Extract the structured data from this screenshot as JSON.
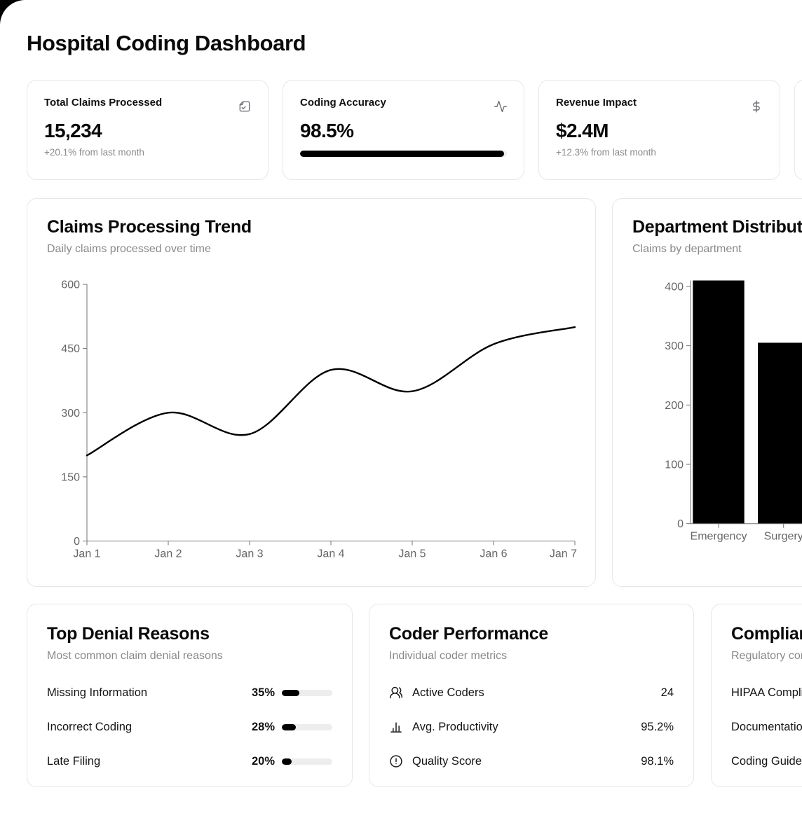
{
  "page": {
    "title": "Hospital Coding Dashboard"
  },
  "stat_cards": [
    {
      "icon": "file-check-icon",
      "label": "Total Claims Processed",
      "value": "15,234",
      "delta": "+20.1% from last month"
    },
    {
      "icon": "activity-icon",
      "label": "Coding Accuracy",
      "value": "98.5%",
      "progress_pct": 98.5
    },
    {
      "icon": "dollar-sign-icon",
      "label": "Revenue Impact",
      "value": "$2.4M",
      "delta": "+12.3% from last month"
    }
  ],
  "chart_data": [
    {
      "type": "line",
      "title": "Claims Processing Trend",
      "subtitle": "Daily claims processed over time",
      "x": [
        "Jan 1",
        "Jan 2",
        "Jan 3",
        "Jan 4",
        "Jan 5",
        "Jan 6",
        "Jan 7"
      ],
      "values": [
        200,
        300,
        250,
        400,
        350,
        460,
        500
      ],
      "ylim": [
        0,
        600
      ],
      "yticks": [
        0,
        150,
        300,
        450,
        600
      ],
      "grid": false,
      "legend": false,
      "line_color": "#000000",
      "axis_color": "#737373",
      "label_color": "#666666"
    },
    {
      "type": "bar",
      "title": "Department Distribution",
      "subtitle": "Claims by department",
      "categories": [
        "Emergency",
        "Surgery"
      ],
      "values": [
        410,
        305
      ],
      "ylim": [
        0,
        410
      ],
      "yticks": [
        0,
        100,
        200,
        300,
        400
      ],
      "grid": false,
      "legend": false,
      "bar_color": "#000000",
      "axis_color": "#737373",
      "label_color": "#666666"
    }
  ],
  "denial_card": {
    "title": "Top Denial Reasons",
    "subtitle": "Most common claim denial reasons",
    "rows": [
      {
        "label": "Missing Information",
        "pct": "35%",
        "pct_value": 35
      },
      {
        "label": "Incorrect Coding",
        "pct": "28%",
        "pct_value": 28
      },
      {
        "label": "Late Filing",
        "pct": "20%",
        "pct_value": 20
      }
    ]
  },
  "coder_card": {
    "title": "Coder Performance",
    "subtitle": "Individual coder metrics",
    "rows": [
      {
        "icon": "users-icon",
        "label": "Active Coders",
        "value": "24"
      },
      {
        "icon": "bar-chart-icon",
        "label": "Avg. Productivity",
        "value": "95.2%"
      },
      {
        "icon": "alert-circle-icon",
        "label": "Quality Score",
        "value": "98.1%"
      }
    ]
  },
  "compliance_card": {
    "title": "Compliance Status",
    "subtitle": "Regulatory compliance",
    "rows": [
      {
        "label": "HIPAA Compliance"
      },
      {
        "label": "Documentation"
      },
      {
        "label": "Coding Guidelines"
      }
    ]
  },
  "colors": {
    "accent": "#000000",
    "card_border": "#e7e7e7",
    "muted_text": "#8a8a8a",
    "progress_track": "#ededed"
  }
}
